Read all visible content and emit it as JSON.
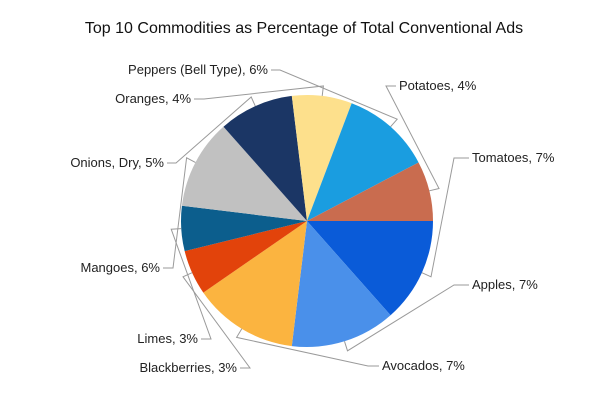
{
  "chart_data": {
    "type": "pie",
    "title": "Top 10 Commodities as Percentage of Total Conventional Ads",
    "slices": [
      {
        "label": "Tomatoes, 7%",
        "value": 7,
        "color": "#0a5bd8"
      },
      {
        "label": "Apples, 7%",
        "value": 7,
        "color": "#4a90ea"
      },
      {
        "label": "Avocados, 7%",
        "value": 7,
        "color": "#fbb440"
      },
      {
        "label": "Blackberries, 3%",
        "value": 3,
        "color": "#e2430b"
      },
      {
        "label": "Limes, 3%",
        "value": 3,
        "color": "#0c5e8d"
      },
      {
        "label": "Mangoes, 6%",
        "value": 6,
        "color": "#c1c1c1"
      },
      {
        "label": "Onions, Dry, 5%",
        "value": 5,
        "color": "#1b3665"
      },
      {
        "label": "Oranges, 4%",
        "value": 4,
        "color": "#fde08c"
      },
      {
        "label": "Peppers (Bell Type), 6%",
        "value": 6,
        "color": "#1a9de0"
      },
      {
        "label": "Potatoes, 4%",
        "value": 4,
        "color": "#c96c4f"
      }
    ],
    "start_angle_deg": 0,
    "direction": "clockwise",
    "legend": "none"
  }
}
